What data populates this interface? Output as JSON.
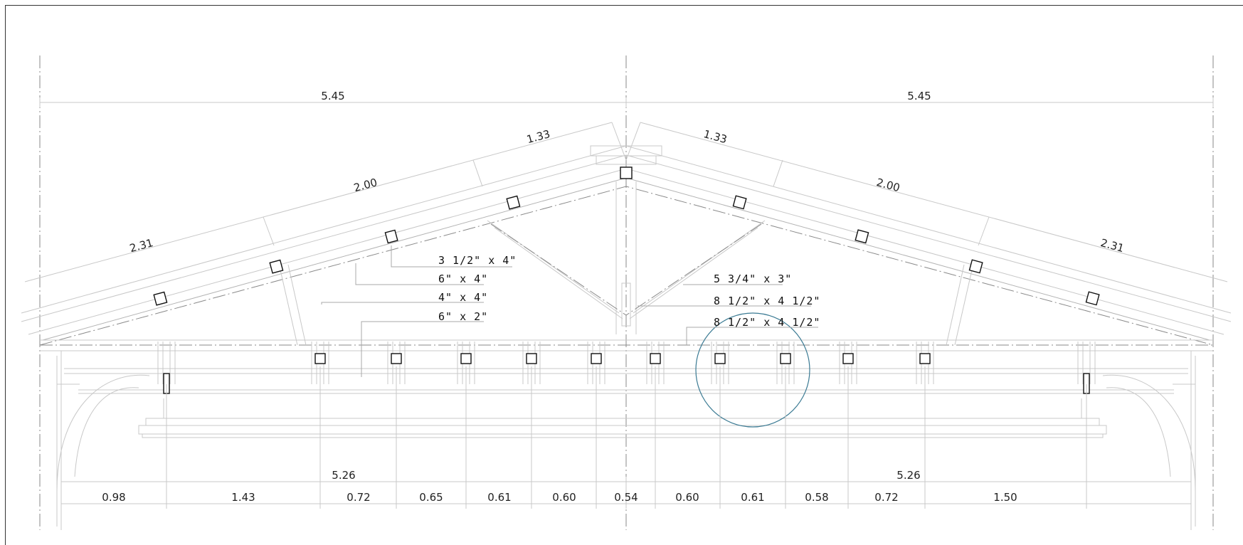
{
  "colors": {
    "line": "#c8c8c8",
    "axis": "#8a8a8a",
    "member": "#111111",
    "detail_circle": "#3a7a93"
  },
  "top_dims": {
    "left_span": "5.45",
    "right_span": "5.45"
  },
  "slope_dims": {
    "left": [
      "2.31",
      "2.00",
      "1.33"
    ],
    "right": [
      "1.33",
      "2.00",
      "2.31"
    ]
  },
  "member_specs": {
    "left": [
      "3 1/2\" x 4\"",
      "6\" x 4\"",
      "4\" x 4\"",
      "6\" x 2\""
    ],
    "right": [
      "5 3/4\" x 3\"",
      "8 1/2\" x 4 1/2\"",
      "8 1/2\" x 4 1/2\""
    ]
  },
  "bottom_dims": {
    "halves": [
      "5.26",
      "5.26"
    ],
    "segments": [
      "0.98",
      "1.43",
      "0.72",
      "0.65",
      "0.61",
      "0.60",
      "0.54",
      "0.60",
      "0.61",
      "0.58",
      "0.72",
      "1.50"
    ]
  }
}
